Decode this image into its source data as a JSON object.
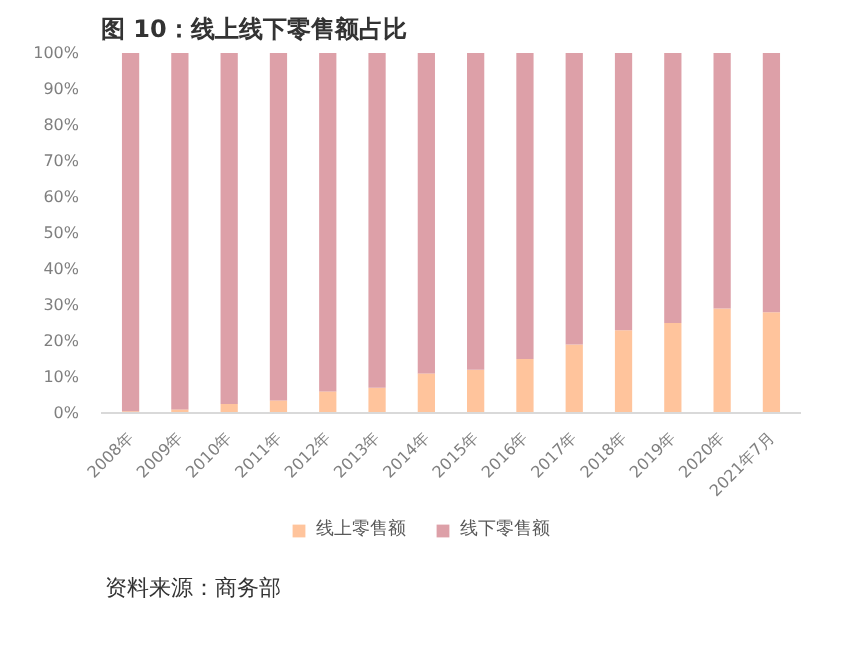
{
  "chart_data": {
    "type": "bar",
    "title": "图 10：线上线下零售额占比",
    "stacked": true,
    "categories": [
      "2008年",
      "2009年",
      "2010年",
      "2011年",
      "2012年",
      "2013年",
      "2014年",
      "2015年",
      "2016年",
      "2017年",
      "2018年",
      "2019年",
      "2020年",
      "2021年7月"
    ],
    "series": [
      {
        "name": "线上零售额",
        "color": "#ffc49c",
        "values": [
          0.5,
          1,
          2.5,
          3.5,
          6,
          7,
          11,
          12,
          15,
          19,
          23,
          25,
          29,
          28
        ]
      },
      {
        "name": "线下零售额",
        "color": "#dda0a8",
        "values": [
          99.5,
          99,
          97.5,
          96.5,
          94,
          93,
          89,
          88,
          85,
          81,
          77,
          75,
          71,
          72
        ]
      }
    ],
    "ylim": [
      0,
      100
    ],
    "yticks": [
      {
        "value": 0,
        "label": "0%"
      },
      {
        "value": 10,
        "label": "10%"
      },
      {
        "value": 20,
        "label": "20%"
      },
      {
        "value": 30,
        "label": "30%"
      },
      {
        "value": 40,
        "label": "40%"
      },
      {
        "value": 50,
        "label": "50%"
      },
      {
        "value": 60,
        "label": "60%"
      },
      {
        "value": 70,
        "label": "70%"
      },
      {
        "value": 80,
        "label": "80%"
      },
      {
        "value": 90,
        "label": "90%"
      },
      {
        "value": 100,
        "label": "100%"
      }
    ],
    "grid": false,
    "legend": "bottom",
    "annotations": [
      "资料来源：商务部"
    ]
  }
}
